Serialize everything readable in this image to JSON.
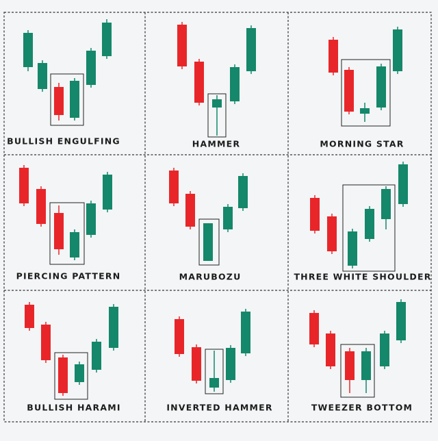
{
  "panels": [
    {
      "label": "BULLISH ENGULFING"
    },
    {
      "label": "HAMMER"
    },
    {
      "label": "MORNING STAR"
    },
    {
      "label": "PIERCING PATTERN"
    },
    {
      "label": "MARUBOZU"
    },
    {
      "label": "THREE WHITE SHOULDER"
    },
    {
      "label": "BULLISH HARAMI"
    },
    {
      "label": "INVERTED HAMMER"
    },
    {
      "label": "TWEEZER BOTTOM"
    }
  ]
}
